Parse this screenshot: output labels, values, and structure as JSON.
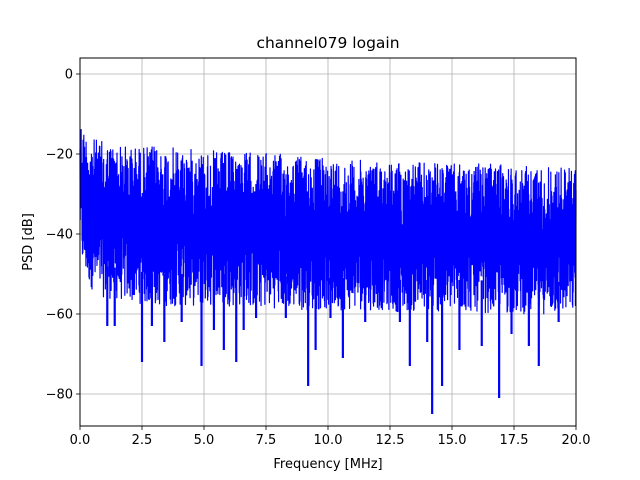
{
  "chart_data": {
    "type": "line",
    "title": "channel079 logain",
    "xlabel": "Frequency [MHz]",
    "ylabel": "PSD [dB]",
    "xlim": [
      0,
      20
    ],
    "ylim": [
      -88,
      4
    ],
    "xticks": [
      0,
      2.5,
      5,
      7.5,
      10,
      12.5,
      15,
      17.5,
      20
    ],
    "xtick_labels": [
      "0.0",
      "2.5",
      "5.0",
      "7.5",
      "10.0",
      "12.5",
      "15.0",
      "17.5",
      "20.0"
    ],
    "yticks": [
      0,
      -20,
      -40,
      -60,
      -80
    ],
    "ytick_labels": [
      "0",
      "−20",
      "−40",
      "−60",
      "−80"
    ],
    "grid": true,
    "series": [
      {
        "color": "#0000ff",
        "description": "dense noisy PSD trace; upper envelope and lower envelope approximations",
        "x": [
          0,
          0.1,
          0.3,
          0.5,
          1.0,
          2.0,
          3.0,
          4.0,
          5.0,
          6.0,
          7.0,
          8.0,
          9.0,
          10.0,
          11.0,
          12.0,
          13.0,
          14.0,
          15.0,
          16.0,
          17.0,
          18.0,
          19.0,
          20.0
        ],
        "upper": [
          -10,
          -13,
          -15,
          -16,
          -17,
          -18,
          -18,
          -18.5,
          -19,
          -19.5,
          -19.5,
          -20,
          -20.5,
          -21,
          -21.5,
          -21.5,
          -22,
          -22,
          -22.5,
          -22.5,
          -22.5,
          -23,
          -23,
          -23
        ],
        "lower": [
          -40,
          -48,
          -52,
          -54,
          -56,
          -57,
          -58,
          -58,
          -58,
          -58,
          -58.5,
          -58.5,
          -59,
          -59,
          -59,
          -59,
          -59.5,
          -59.5,
          -59.5,
          -59.5,
          -60,
          -60,
          -60,
          -60
        ]
      }
    ],
    "notable_dips": [
      {
        "x": 1.1,
        "y": -63
      },
      {
        "x": 1.4,
        "y": -63
      },
      {
        "x": 2.5,
        "y": -72
      },
      {
        "x": 2.9,
        "y": -63
      },
      {
        "x": 3.4,
        "y": -67
      },
      {
        "x": 4.1,
        "y": -62
      },
      {
        "x": 4.9,
        "y": -73
      },
      {
        "x": 5.4,
        "y": -64
      },
      {
        "x": 5.8,
        "y": -69
      },
      {
        "x": 6.3,
        "y": -72
      },
      {
        "x": 6.6,
        "y": -64
      },
      {
        "x": 7.1,
        "y": -61
      },
      {
        "x": 8.3,
        "y": -61
      },
      {
        "x": 9.2,
        "y": -78
      },
      {
        "x": 9.5,
        "y": -69
      },
      {
        "x": 10.1,
        "y": -61
      },
      {
        "x": 10.6,
        "y": -71
      },
      {
        "x": 11.5,
        "y": -62
      },
      {
        "x": 12.9,
        "y": -62
      },
      {
        "x": 13.3,
        "y": -73
      },
      {
        "x": 14.0,
        "y": -67
      },
      {
        "x": 14.2,
        "y": -85
      },
      {
        "x": 14.6,
        "y": -78
      },
      {
        "x": 15.3,
        "y": -69
      },
      {
        "x": 16.2,
        "y": -68
      },
      {
        "x": 16.9,
        "y": -81
      },
      {
        "x": 17.4,
        "y": -65
      },
      {
        "x": 18.1,
        "y": -68
      },
      {
        "x": 18.5,
        "y": -73
      },
      {
        "x": 19.3,
        "y": -62
      }
    ]
  }
}
